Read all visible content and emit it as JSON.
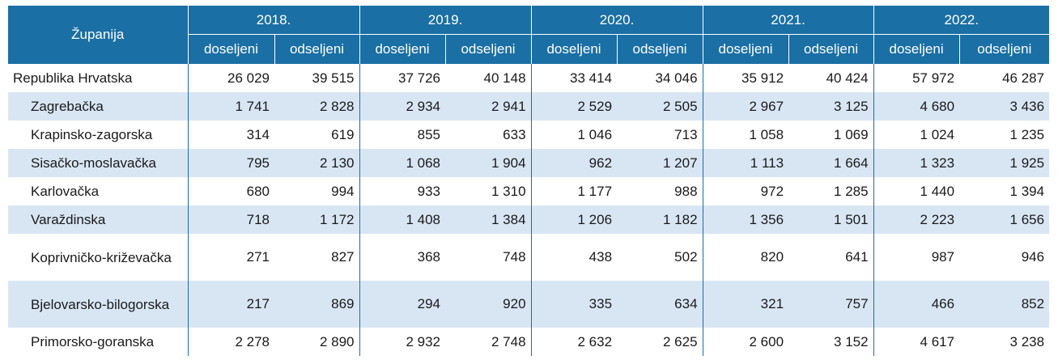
{
  "header": {
    "county_label": "Županija",
    "years": [
      "2018.",
      "2019.",
      "2020.",
      "2021.",
      "2022."
    ],
    "sub_in": "doseljeni",
    "sub_out": "odseljeni"
  },
  "rows": [
    {
      "name": "Republika Hrvatska",
      "v": [
        "26 029",
        "39 515",
        "37 726",
        "40 148",
        "33 414",
        "34 046",
        "35 912",
        "40 424",
        "57 972",
        "46 287"
      ]
    },
    {
      "name": "Zagrebačka",
      "v": [
        "1 741",
        "2 828",
        "2 934",
        "2 941",
        "2 529",
        "2 505",
        "2 967",
        "3 125",
        "4 680",
        "3 436"
      ]
    },
    {
      "name": "Krapinsko-zagorska",
      "v": [
        "314",
        "619",
        "855",
        "633",
        "1 046",
        "713",
        "1 058",
        "1 069",
        "1 024",
        "1 235"
      ]
    },
    {
      "name": "Sisačko-moslavačka",
      "v": [
        "795",
        "2 130",
        "1 068",
        "1 904",
        "962",
        "1 207",
        "1 113",
        "1 664",
        "1 323",
        "1 925"
      ]
    },
    {
      "name": "Karlovačka",
      "v": [
        "680",
        "994",
        "933",
        "1 310",
        "1 177",
        "988",
        "972",
        "1 285",
        "1 440",
        "1 394"
      ]
    },
    {
      "name": "Varaždinska",
      "v": [
        "718",
        "1 172",
        "1 408",
        "1 384",
        "1 206",
        "1 182",
        "1 356",
        "1 501",
        "2 223",
        "1 656"
      ]
    },
    {
      "name": "Koprivničko-križevačka",
      "v": [
        "271",
        "827",
        "368",
        "748",
        "438",
        "502",
        "820",
        "641",
        "987",
        "946"
      ]
    },
    {
      "name": "Bjelovarsko-bilogorska",
      "v": [
        "217",
        "869",
        "294",
        "920",
        "335",
        "634",
        "321",
        "757",
        "466",
        "852"
      ]
    },
    {
      "name": "Primorsko-goranska",
      "v": [
        "2 278",
        "2 890",
        "2 932",
        "2 748",
        "2 632",
        "2 625",
        "2 600",
        "3 152",
        "4 617",
        "3 238"
      ]
    }
  ]
}
